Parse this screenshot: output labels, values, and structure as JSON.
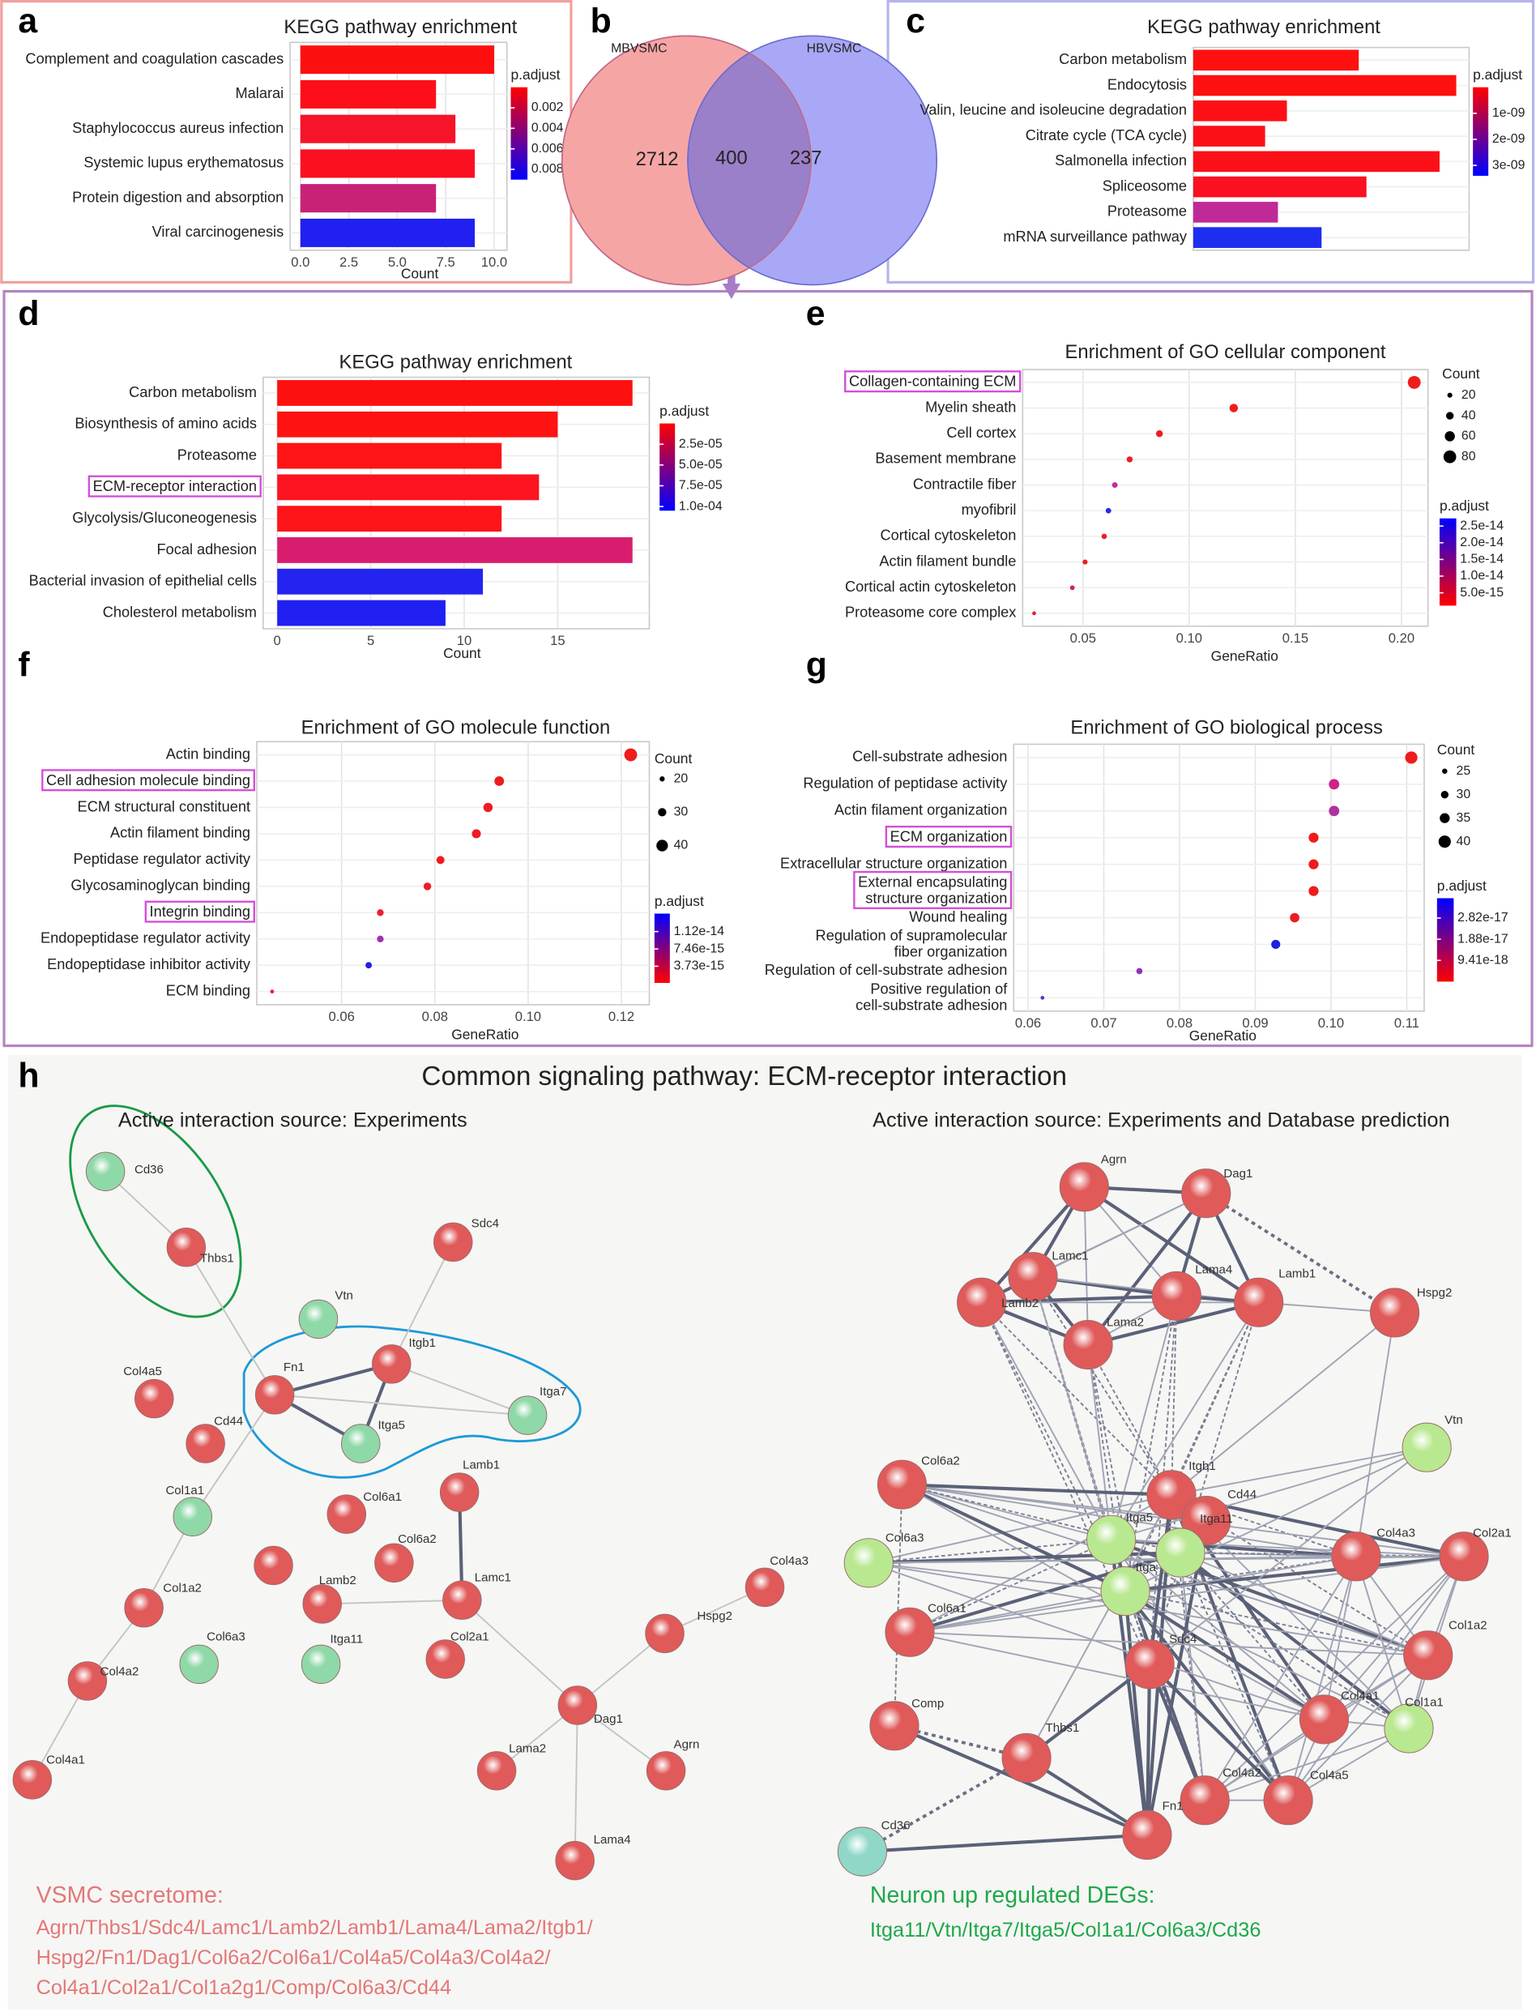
{
  "panel_labels": [
    "a",
    "b",
    "c",
    "d",
    "e",
    "f",
    "g",
    "h"
  ],
  "chart_data": [
    {
      "type": "bar",
      "title": "KEGG pathway enrichment",
      "categories": [
        "Complement and coagulation cascades",
        "Malarai",
        "Staphylococcus aureus infection",
        "Systemic lupus erythematosus",
        "Protein digestion and absorption",
        "Viral carcinogenesis"
      ],
      "values": [
        10,
        7,
        8,
        9,
        7,
        9
      ],
      "colors": [
        "#fe0f0f",
        "#fc0f18",
        "#f5142a",
        "#fa1020",
        "#c82277",
        "#2020f0"
      ],
      "xlabel": "Count",
      "xlim": [
        -0.53,
        10.66
      ],
      "xticks": [
        {
          "value": 0,
          "label": "0.0"
        },
        {
          "value": 2.5,
          "label": "2.5"
        },
        {
          "value": 5,
          "label": "5.0"
        },
        {
          "value": 7.5,
          "label": "7.5"
        },
        {
          "value": 10,
          "label": "10.0"
        }
      ],
      "grid": true,
      "colorbar": {
        "title": "p.adjust",
        "lim": [
          0,
          0.009
        ],
        "direction": "down",
        "colors": [
          "#ff0000",
          "#0000ff"
        ],
        "ticks": [
          0.002,
          0.004,
          0.006,
          0.008
        ]
      }
    },
    {
      "type": "venn",
      "sets": [
        "MBVSMC",
        "HBVSMC"
      ],
      "values": [
        2712,
        400,
        237
      ],
      "colors": [
        "#f6a5a5",
        "#a8a8f6",
        "#9a80c8"
      ]
    },
    {
      "type": "bar",
      "title": "KEGG pathway enrichment",
      "categories": [
        "Carbon metabolism",
        "Endocytosis",
        "Valin, leucine and isoleucine degradation",
        "Citrate cycle (TCA cycle)",
        "Salmonella infection",
        "Spliceosome",
        "Proteasome",
        "mRNA surveillance pathway"
      ],
      "values": [
        12.9,
        20.5,
        7.3,
        5.6,
        19.2,
        13.5,
        6.6,
        10.0
      ],
      "colors": [
        "#fe1010",
        "#fe1010",
        "#fc1015",
        "#fc1018",
        "#fc1018",
        "#fa1020",
        "#c02a98",
        "#1e2ef0"
      ],
      "xlim": [
        0,
        21.5
      ],
      "grid": true,
      "colorbar": {
        "title": "p.adjust",
        "lim": [
          0,
          3.4e-09
        ],
        "direction": "down",
        "colors": [
          "#ff0000",
          "#0000ff"
        ],
        "ticks": [
          {
            "value": 1e-09,
            "label": "1e-09"
          },
          {
            "value": 2e-09,
            "label": "2e-09"
          },
          {
            "value": 3e-09,
            "label": "3e-09"
          }
        ]
      }
    },
    {
      "type": "bar",
      "title": "KEGG pathway enrichment",
      "categories": [
        "Carbon metabolism",
        "Biosynthesis of amino acids",
        "Proteasome",
        "ECM-receptor interaction",
        "Glycolysis/Gluconeogenesis",
        "Focal adhesion",
        "Bacterial invasion of epithelial cells",
        "Cholesterol metabolism"
      ],
      "values": [
        19,
        15,
        12,
        14,
        12,
        19,
        11,
        9
      ],
      "colors": [
        "#fe1010",
        "#fe1212",
        "#fe1414",
        "#fb1420",
        "#fc1418",
        "#d81d6e",
        "#2424f0",
        "#2020f2"
      ],
      "xlabel": "Count",
      "xlim": [
        -0.75,
        19.9
      ],
      "xticks": [
        0,
        5,
        10,
        15
      ],
      "grid": true,
      "highlight": [
        3
      ],
      "colorbar": {
        "title": "p.adjust",
        "lim": [
          0,
          0.000105
        ],
        "direction": "down",
        "colors": [
          "#ff0000",
          "#0000ff"
        ],
        "ticks": [
          {
            "value": 2.5e-05,
            "label": "2.5e-05"
          },
          {
            "value": 5e-05,
            "label": "5.0e-05"
          },
          {
            "value": 7.5e-05,
            "label": "7.5e-05"
          },
          {
            "value": 0.0001,
            "label": "1.0e-04"
          }
        ]
      }
    },
    {
      "type": "dot",
      "title": "Enrichment of GO cellular component",
      "categories": [
        "Collagen-containing ECM",
        "Myelin sheath",
        "Cell cortex",
        "Basement membrane",
        "Contractile fiber",
        "myofibril",
        "Cortical cytoskeleton",
        "Actin filament bundle",
        "Cortical actin cytoskeleton",
        "Proteasome core complex"
      ],
      "values": [
        0.206,
        0.121,
        0.086,
        0.072,
        0.065,
        0.062,
        0.06,
        0.051,
        0.045,
        0.027
      ],
      "sizes": [
        81,
        47,
        34,
        28,
        25,
        24,
        23,
        20,
        18,
        11
      ],
      "colors": [
        "#ee1c1c",
        "#ee1c1c",
        "#ee1c22",
        "#ee1c2a",
        "#c0309a",
        "#2a2ae0",
        "#ee1c28",
        "#ee1c24",
        "#d02070",
        "#ee1c30"
      ],
      "xlabel": "GeneRatio",
      "xlim": [
        0.0216,
        0.2125
      ],
      "xticks": [
        0.05,
        {
          "value": 0.1,
          "label": "0.10"
        },
        0.15,
        {
          "value": 0.2,
          "label": "0.20"
        }
      ],
      "grid": true,
      "highlight": [
        0
      ],
      "size_legend": {
        "title": "Count",
        "ticks": [
          20,
          40,
          60,
          80
        ]
      },
      "colorbar": {
        "title": "p.adjust",
        "lim": [
          1.15e-15,
          2.73e-14
        ],
        "direction": "up",
        "colors": [
          "#ff0000",
          "#0000ff"
        ],
        "ticks": [
          {
            "value": 2.5e-14,
            "label": "2.5e-14"
          },
          {
            "value": 2e-14,
            "label": "2.0e-14"
          },
          {
            "value": 1.5e-14,
            "label": "1.5e-14"
          },
          {
            "value": 1e-14,
            "label": "1.0e-14"
          },
          {
            "value": 5e-15,
            "label": "5.0e-15"
          }
        ]
      }
    },
    {
      "type": "dot",
      "title": "Enrichment of GO molecule function",
      "categories": [
        "Actin binding",
        "Cell adhesion molecule binding",
        "ECM structural constituent",
        "Actin filament binding",
        "Peptidase regulator activity",
        "Glycosaminoglycan binding",
        "Integrin binding",
        "Endopeptidase regulator activity",
        "Endopeptidase inhibitor activity",
        "ECM binding"
      ],
      "values": [
        0.122,
        0.0938,
        0.0914,
        0.0889,
        0.0812,
        0.0784,
        0.0683,
        0.0683,
        0.0658,
        0.0451
      ],
      "sizes": [
        44,
        34,
        33,
        32,
        29,
        28,
        25,
        25,
        24,
        16
      ],
      "colors": [
        "#ee1c1c",
        "#ee1c1c",
        "#ee1c22",
        "#ee1c24",
        "#ee1c20",
        "#ee1c28",
        "#ee1c30",
        "#a030b0",
        "#2020e0",
        "#ee1c30"
      ],
      "xlabel": "GeneRatio",
      "xlim": [
        0.0418,
        0.126
      ],
      "xticks": [
        0.06,
        0.08,
        {
          "value": 0.1,
          "label": "0.10"
        },
        0.12
      ],
      "grid": true,
      "highlight": [
        1,
        6
      ],
      "size_legend": {
        "title": "Count",
        "ticks": [
          20,
          30,
          40
        ]
      },
      "colorbar": {
        "title": "p.adjust",
        "lim": [
          1.4e-16,
          1.507e-14
        ],
        "direction": "up",
        "colors": [
          "#ff0000",
          "#0000ff"
        ],
        "ticks": [
          {
            "value": 1.12e-14,
            "label": "1.12e-14"
          },
          {
            "value": 7.46e-15,
            "label": "7.46e-15"
          },
          {
            "value": 3.73e-15,
            "label": "3.73e-15"
          }
        ]
      }
    },
    {
      "type": "dot",
      "title": "Enrichment of GO biological process",
      "categories": [
        "Cell-substrate adhesion",
        "Regulation of peptidase activity",
        "Actin filament organization",
        "ECM organization",
        "Extracellular structure organization",
        "External encapsulating\nstructure organization",
        "Wound healing",
        "Regulation of supramolecular\nfiber organization",
        "Regulation of cell-substrate adhesion",
        "Positive regulation of\ncell-substrate adhesion"
      ],
      "values": [
        0.1106,
        0.1004,
        0.1004,
        0.0977,
        0.0977,
        0.0977,
        0.0952,
        0.0927,
        0.0747,
        0.0619
      ],
      "sizes": [
        40,
        36,
        36,
        35,
        35,
        35,
        34,
        33,
        27,
        22
      ],
      "colors": [
        "#ee1c1c",
        "#d0208a",
        "#b030a0",
        "#ee1c1c",
        "#ee1c1c",
        "#ee1c1c",
        "#ee1c24",
        "#2020e0",
        "#9030c0",
        "#6030d0"
      ],
      "xlabel": "GeneRatio",
      "xlim": [
        0.0581,
        0.1123
      ],
      "xticks": [
        0.06,
        0.07,
        0.08,
        0.09,
        {
          "value": 0.1,
          "label": "0.10"
        },
        0.11
      ],
      "grid": true,
      "highlight": [
        3,
        5
      ],
      "size_legend": {
        "title": "Count",
        "ticks": [
          25,
          30,
          35,
          40
        ]
      },
      "colorbar": {
        "title": "p.adjust",
        "lim": [
          0,
          3.7e-17
        ],
        "direction": "up",
        "colors": [
          "#ff0000",
          "#0000ff"
        ],
        "ticks": [
          {
            "value": 2.82e-17,
            "label": "2.82e-17"
          },
          {
            "value": 1.88e-17,
            "label": "1.88e-17"
          },
          {
            "value": 9.41e-18,
            "label": "9.41e-18"
          }
        ]
      }
    }
  ],
  "network": {
    "title": "Common signaling pathway: ECM-receptor interaction",
    "left": {
      "title": "Active interaction source: Experiments",
      "nodes": [
        {
          "label": "Cd36",
          "color": "#8fd8a8"
        },
        {
          "label": "Thbs1",
          "color": "#e05a5a"
        },
        {
          "label": "Sdc4",
          "color": "#e05a5a"
        },
        {
          "label": "Vtn",
          "color": "#8fd8a8"
        },
        {
          "label": "Itgb1",
          "color": "#e05a5a"
        },
        {
          "label": "Fn1",
          "color": "#e05a5a"
        },
        {
          "label": "Itga7",
          "color": "#8fd8a8"
        },
        {
          "label": "Itga5",
          "color": "#8fd8a8"
        },
        {
          "label": "Col4a5",
          "color": "#e05a5a"
        },
        {
          "label": "Cd44",
          "color": "#e05a5a"
        },
        {
          "label": "Col1a1",
          "color": "#8fd8a8"
        },
        {
          "label": "Lamb1",
          "color": "#e05a5a"
        },
        {
          "label": "Col6a1",
          "color": "#e05a5a"
        },
        {
          "label": "Col6a2",
          "color": "#e05a5a"
        },
        {
          "label": null,
          "color": "#e05a5a"
        },
        {
          "label": "Lamb2",
          "color": "#e05a5a"
        },
        {
          "label": "Lamc1",
          "color": "#e05a5a"
        },
        {
          "label": "Col1a2",
          "color": "#e05a5a"
        },
        {
          "label": "Col6a3",
          "color": "#8fd8a8"
        },
        {
          "label": "Itga11",
          "color": "#8fd8a8"
        },
        {
          "label": "Col2a1",
          "color": "#e05a5a"
        },
        {
          "label": "Col4a3",
          "color": "#e05a5a"
        },
        {
          "label": "Hspg2",
          "color": "#e05a5a"
        },
        {
          "label": "Dag1",
          "color": "#e05a5a"
        },
        {
          "label": "Col4a2",
          "color": "#e05a5a"
        },
        {
          "label": "Agrn",
          "color": "#e05a5a"
        },
        {
          "label": "Lama2",
          "color": "#e05a5a"
        },
        {
          "label": "Col4a1",
          "color": "#e05a5a"
        },
        {
          "label": "Lama4",
          "color": "#e05a5a"
        }
      ]
    },
    "right": {
      "title": "Active interaction source: Experiments and Database prediction",
      "nodes": [
        {
          "label": "Agrn",
          "color": "#e05a5a"
        },
        {
          "label": "Dag1",
          "color": "#e05a5a"
        },
        {
          "label": "Lamc1",
          "color": "#e05a5a"
        },
        {
          "label": "Lama4",
          "color": "#e05a5a"
        },
        {
          "label": "Lamb1",
          "color": "#e05a5a"
        },
        {
          "label": "Lamb2",
          "color": "#e05a5a"
        },
        {
          "label": "Lama2",
          "color": "#e05a5a"
        },
        {
          "label": "Hspg2",
          "color": "#e05a5a"
        },
        {
          "label": "Vtn",
          "color": "#b8e890"
        },
        {
          "label": "Col6a2",
          "color": "#e05a5a"
        },
        {
          "label": "Itgb1",
          "color": "#e05a5a"
        },
        {
          "label": "Cd44",
          "color": "#e05a5a"
        },
        {
          "label": "Itga5",
          "color": "#b8e890"
        },
        {
          "label": "Itga11",
          "color": "#b8e890"
        },
        {
          "label": "Itga",
          "color": "#b8e890"
        },
        {
          "label": "Col6a3",
          "color": "#b8e890"
        },
        {
          "label": "Col4a3",
          "color": "#e05a5a"
        },
        {
          "label": "Col2a1",
          "color": "#e05a5a"
        },
        {
          "label": "Col6a1",
          "color": "#e05a5a"
        },
        {
          "label": "Sdc4",
          "color": "#e05a5a"
        },
        {
          "label": "Col1a2",
          "color": "#e05a5a"
        },
        {
          "label": "Comp",
          "color": "#e05a5a"
        },
        {
          "label": "Thbs1",
          "color": "#e05a5a"
        },
        {
          "label": "Col4a1",
          "color": "#e05a5a"
        },
        {
          "label": "Col1a1",
          "color": "#b8e890"
        },
        {
          "label": "Col4a2",
          "color": "#e05a5a"
        },
        {
          "label": "Col4a5",
          "color": "#e05a5a"
        },
        {
          "label": "Fn1",
          "color": "#e05a5a"
        },
        {
          "label": "Cd36",
          "color": "#8fd8c8"
        }
      ]
    },
    "secretome": {
      "title": "VSMC secretome:",
      "lines": [
        "Agrn/Thbs1/Sdc4/Lamc1/Lamb2/Lamb1/Lama4/Lama2/Itgb1/",
        "Hspg2/Fn1/Dag1/Col6a2/Col6a1/Col4a5/Col4a3/Col4a2/",
        "Col4a1/Col2a1/Col1a2g1/Comp/Col6a3/Cd44"
      ]
    },
    "neuron_degs": {
      "title": "Neuron up regulated DEGs:",
      "lines": [
        "Itga11/Vtn/Itga7/Itga5/Col1a1/Col6a3/Cd36"
      ]
    }
  }
}
